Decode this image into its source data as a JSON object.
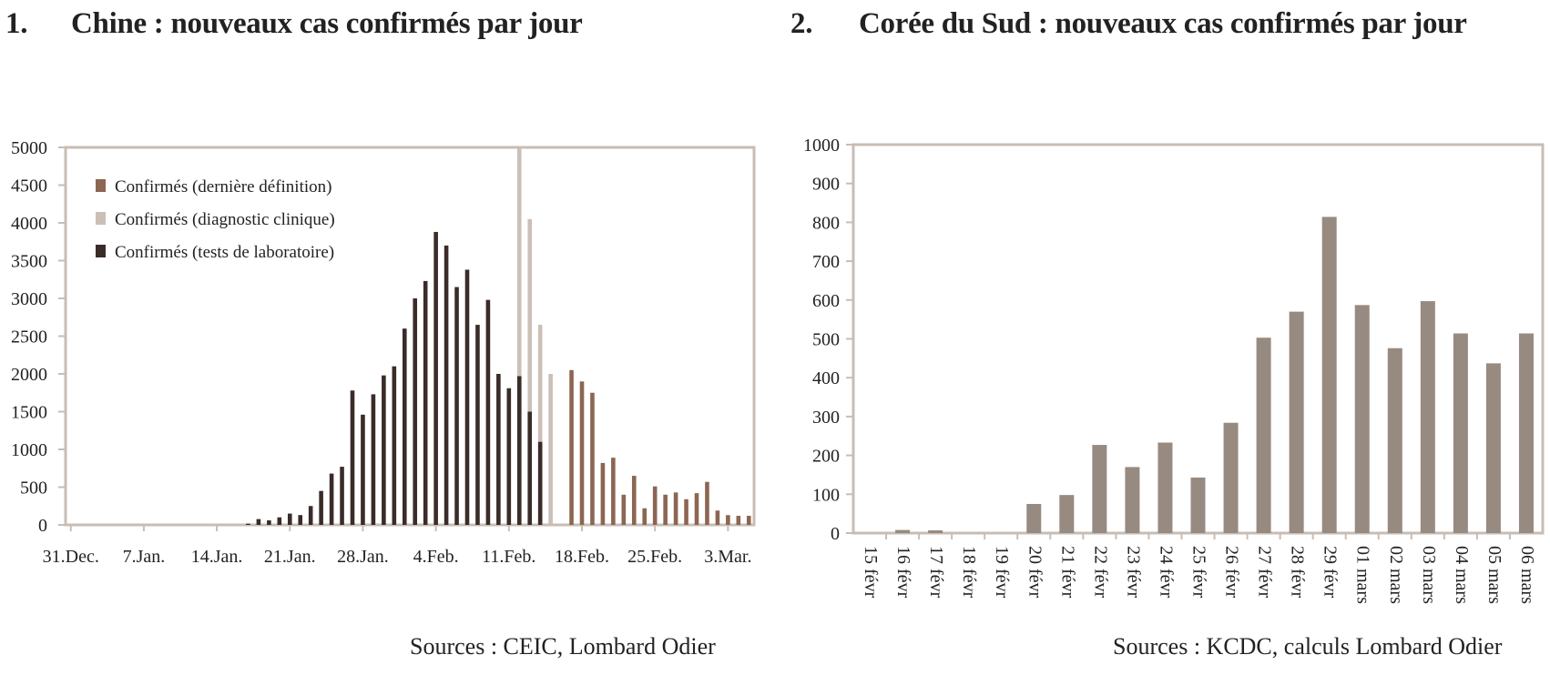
{
  "charts": {
    "left": {
      "number": "1.",
      "title": "Chine : nouveaux cas confirmés par jour",
      "source": "Sources : CEIC, Lombard Odier"
    },
    "right": {
      "number": "2.",
      "title": "Corée du Sud : nouveaux cas confirmés par jour",
      "source": "Sources : KCDC, calculs Lombard Odier"
    }
  },
  "colors": {
    "lab": "#3a2c28",
    "clinical": "#cbbfb8",
    "latest": "#8c6652",
    "korea": "#978a80",
    "frame": "#c8bdb4"
  },
  "chart_data": [
    {
      "type": "bar",
      "stacked": false,
      "title": "Chine : nouveaux cas confirmés par jour",
      "ylim": [
        0,
        5000
      ],
      "yticks": [
        0,
        500,
        1000,
        1500,
        2000,
        2500,
        3000,
        3500,
        4000,
        4500,
        5000
      ],
      "xtick_labels": [
        "31.Dec.",
        "7.Jan.",
        "14.Jan.",
        "21.Jan.",
        "28.Jan.",
        "4.Feb.",
        "11.Feb.",
        "18.Feb.",
        "25.Feb.",
        "3.Mar."
      ],
      "xtick_index": [
        0,
        7,
        14,
        21,
        28,
        35,
        42,
        49,
        56,
        63
      ],
      "legend_position": "top-left",
      "series": [
        {
          "name": "Confirmés (dernière définition)",
          "key": "latest",
          "values": [
            null,
            null,
            null,
            null,
            null,
            null,
            null,
            null,
            null,
            null,
            null,
            null,
            null,
            null,
            null,
            null,
            null,
            null,
            null,
            null,
            null,
            null,
            null,
            null,
            null,
            null,
            null,
            null,
            null,
            null,
            null,
            null,
            null,
            null,
            null,
            null,
            null,
            null,
            null,
            null,
            null,
            null,
            null,
            null,
            null,
            null,
            null,
            null,
            2050,
            1900,
            1750,
            820,
            890,
            400,
            650,
            220,
            510,
            400,
            430,
            340,
            420,
            570,
            190,
            130,
            120,
            120
          ]
        },
        {
          "name": "Confirmés (diagnostic clinique)",
          "key": "clinical",
          "values": [
            null,
            null,
            null,
            null,
            null,
            null,
            null,
            null,
            null,
            null,
            null,
            null,
            null,
            null,
            null,
            null,
            null,
            null,
            null,
            null,
            null,
            null,
            null,
            null,
            null,
            null,
            null,
            null,
            null,
            null,
            null,
            null,
            null,
            null,
            null,
            null,
            null,
            null,
            null,
            null,
            null,
            null,
            null,
            5000,
            4050,
            2650,
            2000,
            null,
            null,
            null,
            null,
            null,
            null,
            null,
            null,
            null,
            null,
            null,
            null,
            null,
            null,
            null,
            null,
            null,
            null,
            null
          ]
        },
        {
          "name": "Confirmés (tests de laboratoire)",
          "key": "lab",
          "values": [
            0,
            0,
            0,
            0,
            0,
            0,
            0,
            0,
            0,
            0,
            0,
            0,
            0,
            0,
            0,
            0,
            0,
            17,
            77,
            60,
            100,
            150,
            130,
            250,
            450,
            680,
            770,
            1780,
            1460,
            1730,
            1980,
            2100,
            2600,
            3000,
            3230,
            3880,
            3700,
            3150,
            3380,
            2650,
            2980,
            2000,
            1810,
            1970,
            1500,
            1100,
            null,
            null,
            null,
            null,
            null,
            null,
            null,
            null,
            null,
            null,
            null,
            null,
            null,
            null,
            null,
            null,
            null,
            null,
            null,
            null
          ]
        }
      ]
    },
    {
      "type": "bar",
      "title": "Corée du Sud : nouveaux cas confirmés par jour",
      "ylim": [
        0,
        1000
      ],
      "yticks": [
        0,
        100,
        200,
        300,
        400,
        500,
        600,
        700,
        800,
        900,
        1000
      ],
      "categories": [
        "15 févr",
        "16 févr",
        "17 févr",
        "18 févr",
        "19 févr",
        "20 févr",
        "21 févr",
        "22 févr",
        "23 févr",
        "24 févr",
        "25 févr",
        "26 févr",
        "27 févr",
        "28 févr",
        "29 févr",
        "01 mars",
        "02 mars",
        "03 mars",
        "04 mars",
        "05 mars",
        "06 mars"
      ],
      "values": [
        0,
        8,
        7,
        0,
        0,
        75,
        98,
        227,
        170,
        233,
        143,
        284,
        503,
        570,
        814,
        587,
        476,
        597,
        514,
        437,
        514
      ]
    }
  ]
}
